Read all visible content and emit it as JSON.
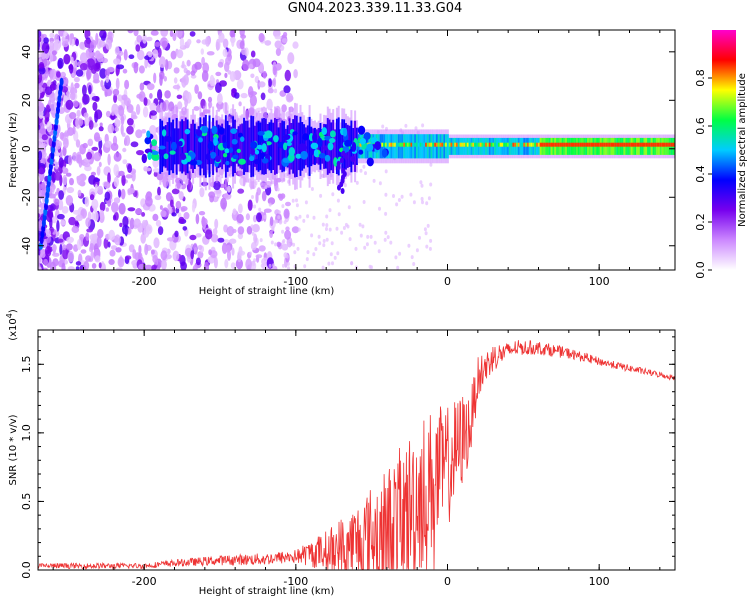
{
  "title": "GN04.2023.339.11.33.G04",
  "chart_data": [
    {
      "type": "heatmap",
      "xlabel": "Height of straight line (km)",
      "ylabel": "Frequency (Hz)",
      "xlim": [
        -270,
        150
      ],
      "ylim": [
        -50,
        49
      ],
      "xticks": [
        -200,
        -100,
        0,
        100
      ],
      "yticks": [
        40,
        20,
        0,
        -20,
        -40
      ],
      "colorbar": {
        "label": "Normalized spectral amplitude",
        "range": [
          0,
          1
        ],
        "ticks": [
          "0.0",
          "0.2",
          "0.4",
          "0.6",
          "0.8"
        ],
        "colors": [
          "#ffffff",
          "#cc88ff",
          "#7700ee",
          "#0000ff",
          "#00ccff",
          "#00ff44",
          "#ffff00",
          "#ff0000",
          "#ff00cc"
        ]
      }
    },
    {
      "type": "line",
      "xlabel": "Height of straight line (km)",
      "ylabel": "SNR (10 * v/v)",
      "y_multiplier": "(x10",
      "y_multiplier_exp": "4",
      "y_multiplier_close": ")",
      "xlim": [
        -270,
        150
      ],
      "ylim": [
        0,
        1.75
      ],
      "xticks": [
        -200,
        -100,
        0,
        100
      ],
      "yticks": [
        "0.0",
        "0.5",
        "1.0",
        "1.5"
      ],
      "color": "#ee3333",
      "trend": {
        "x": [
          -270,
          -200,
          -180,
          -150,
          -120,
          -100,
          -80,
          -60,
          -40,
          -25,
          -15,
          0,
          15,
          20,
          30,
          45,
          60,
          80,
          100,
          120,
          150
        ],
        "y": [
          0.03,
          0.03,
          0.05,
          0.07,
          0.08,
          0.1,
          0.14,
          0.2,
          0.3,
          0.45,
          0.6,
          0.75,
          1.05,
          1.4,
          1.55,
          1.62,
          1.62,
          1.58,
          1.52,
          1.47,
          1.4
        ]
      },
      "noise_amplitude": {
        "x": [
          -270,
          -200,
          -100,
          -80,
          -60,
          -40,
          -20,
          -5,
          10,
          20,
          40,
          100,
          150
        ],
        "y": [
          0.02,
          0.02,
          0.05,
          0.15,
          0.3,
          0.45,
          0.6,
          0.5,
          0.35,
          0.15,
          0.06,
          0.03,
          0.02
        ]
      }
    }
  ]
}
